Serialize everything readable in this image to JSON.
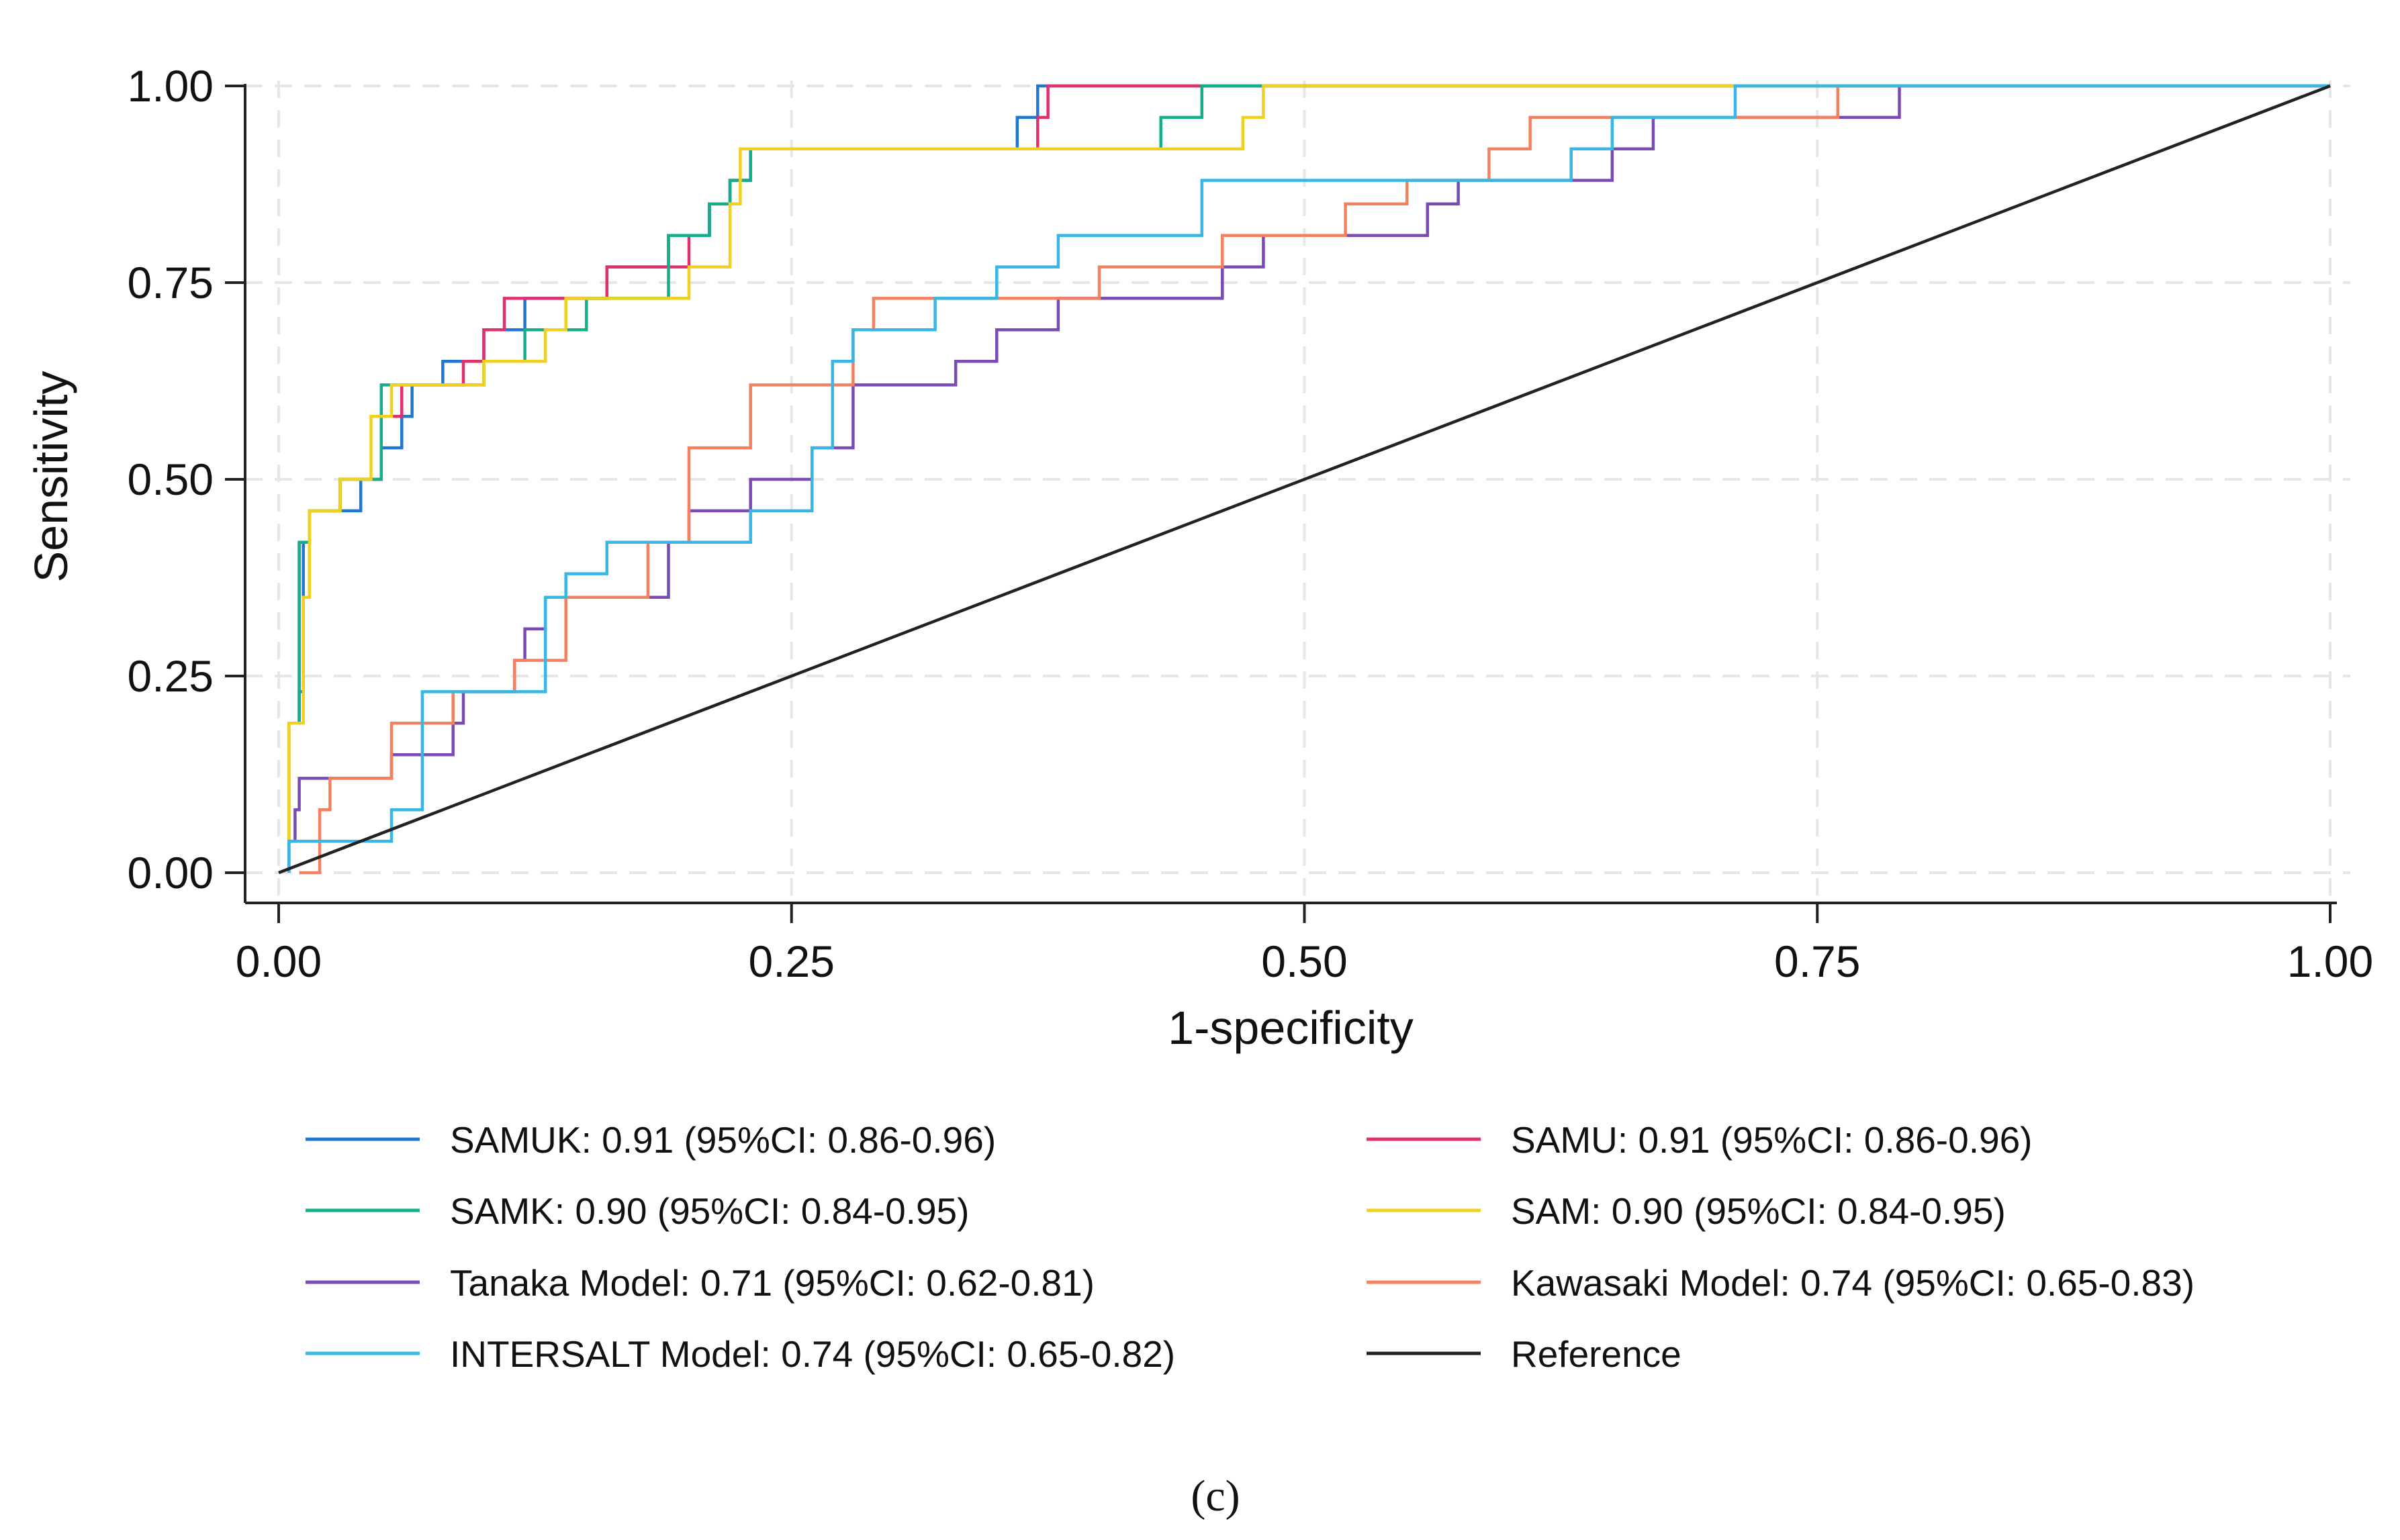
{
  "chart_data": {
    "type": "line",
    "xlabel": "1-specificity",
    "ylabel": "Sensitivity",
    "xlim": [
      0,
      1
    ],
    "ylim": [
      0,
      1
    ],
    "xticks": [
      "0.00",
      "0.25",
      "0.50",
      "0.75",
      "1.00"
    ],
    "yticks": [
      "0.00",
      "0.25",
      "0.50",
      "0.75",
      "1.00"
    ],
    "grid": true,
    "legend_position": "bottom",
    "caption": "(c)",
    "series": [
      {
        "name": "SAMUK: 0.91 (95%CI: 0.86-0.96)",
        "color": "#1f77d4",
        "points": [
          [
            0.005,
            0
          ],
          [
            0.005,
            0.19
          ],
          [
            0.01,
            0.19
          ],
          [
            0.01,
            0.23
          ],
          [
            0.012,
            0.23
          ],
          [
            0.012,
            0.42
          ],
          [
            0.015,
            0.42
          ],
          [
            0.015,
            0.46
          ],
          [
            0.04,
            0.46
          ],
          [
            0.04,
            0.5
          ],
          [
            0.05,
            0.5
          ],
          [
            0.05,
            0.54
          ],
          [
            0.06,
            0.54
          ],
          [
            0.06,
            0.58
          ],
          [
            0.065,
            0.58
          ],
          [
            0.065,
            0.62
          ],
          [
            0.08,
            0.62
          ],
          [
            0.08,
            0.65
          ],
          [
            0.1,
            0.65
          ],
          [
            0.1,
            0.69
          ],
          [
            0.12,
            0.69
          ],
          [
            0.12,
            0.73
          ],
          [
            0.16,
            0.73
          ],
          [
            0.16,
            0.77
          ],
          [
            0.19,
            0.77
          ],
          [
            0.19,
            0.81
          ],
          [
            0.21,
            0.81
          ],
          [
            0.21,
            0.85
          ],
          [
            0.22,
            0.85
          ],
          [
            0.22,
            0.88
          ],
          [
            0.23,
            0.88
          ],
          [
            0.23,
            0.92
          ],
          [
            0.36,
            0.92
          ],
          [
            0.36,
            0.96
          ],
          [
            0.37,
            0.96
          ],
          [
            0.37,
            1.0
          ],
          [
            1.0,
            1.0
          ]
        ]
      },
      {
        "name": "SAMU: 0.91 (95%CI: 0.86-0.96)",
        "color": "#e0306e",
        "points": [
          [
            0.005,
            0
          ],
          [
            0.005,
            0.19
          ],
          [
            0.01,
            0.19
          ],
          [
            0.01,
            0.42
          ],
          [
            0.015,
            0.42
          ],
          [
            0.015,
            0.46
          ],
          [
            0.03,
            0.46
          ],
          [
            0.03,
            0.5
          ],
          [
            0.05,
            0.5
          ],
          [
            0.05,
            0.58
          ],
          [
            0.06,
            0.58
          ],
          [
            0.06,
            0.62
          ],
          [
            0.09,
            0.62
          ],
          [
            0.09,
            0.65
          ],
          [
            0.1,
            0.65
          ],
          [
            0.1,
            0.69
          ],
          [
            0.11,
            0.69
          ],
          [
            0.11,
            0.73
          ],
          [
            0.16,
            0.73
          ],
          [
            0.16,
            0.77
          ],
          [
            0.2,
            0.77
          ],
          [
            0.2,
            0.81
          ],
          [
            0.21,
            0.81
          ],
          [
            0.21,
            0.85
          ],
          [
            0.22,
            0.85
          ],
          [
            0.22,
            0.88
          ],
          [
            0.23,
            0.88
          ],
          [
            0.23,
            0.92
          ],
          [
            0.37,
            0.92
          ],
          [
            0.37,
            0.96
          ],
          [
            0.375,
            0.96
          ],
          [
            0.375,
            1.0
          ],
          [
            1.0,
            1.0
          ]
        ]
      },
      {
        "name": "SAMK: 0.90 (95%CI: 0.84-0.95)",
        "color": "#12b08a",
        "points": [
          [
            0.005,
            0
          ],
          [
            0.005,
            0.19
          ],
          [
            0.01,
            0.19
          ],
          [
            0.01,
            0.42
          ],
          [
            0.015,
            0.42
          ],
          [
            0.015,
            0.46
          ],
          [
            0.03,
            0.46
          ],
          [
            0.03,
            0.5
          ],
          [
            0.05,
            0.5
          ],
          [
            0.05,
            0.62
          ],
          [
            0.06,
            0.62
          ],
          [
            0.06,
            0.62
          ],
          [
            0.1,
            0.62
          ],
          [
            0.1,
            0.65
          ],
          [
            0.12,
            0.65
          ],
          [
            0.12,
            0.69
          ],
          [
            0.15,
            0.69
          ],
          [
            0.15,
            0.73
          ],
          [
            0.19,
            0.73
          ],
          [
            0.19,
            0.81
          ],
          [
            0.21,
            0.81
          ],
          [
            0.21,
            0.85
          ],
          [
            0.22,
            0.85
          ],
          [
            0.22,
            0.88
          ],
          [
            0.23,
            0.88
          ],
          [
            0.23,
            0.92
          ],
          [
            0.43,
            0.92
          ],
          [
            0.43,
            0.96
          ],
          [
            0.45,
            0.96
          ],
          [
            0.45,
            1.0
          ],
          [
            1.0,
            1.0
          ]
        ]
      },
      {
        "name": "SAM: 0.90 (95%CI: 0.84-0.95)",
        "color": "#f0d020",
        "points": [
          [
            0.005,
            0
          ],
          [
            0.005,
            0.19
          ],
          [
            0.012,
            0.19
          ],
          [
            0.012,
            0.35
          ],
          [
            0.015,
            0.35
          ],
          [
            0.015,
            0.46
          ],
          [
            0.03,
            0.46
          ],
          [
            0.03,
            0.5
          ],
          [
            0.045,
            0.5
          ],
          [
            0.045,
            0.58
          ],
          [
            0.055,
            0.58
          ],
          [
            0.055,
            0.62
          ],
          [
            0.1,
            0.62
          ],
          [
            0.1,
            0.65
          ],
          [
            0.13,
            0.65
          ],
          [
            0.13,
            0.69
          ],
          [
            0.14,
            0.69
          ],
          [
            0.14,
            0.73
          ],
          [
            0.2,
            0.73
          ],
          [
            0.2,
            0.77
          ],
          [
            0.22,
            0.77
          ],
          [
            0.22,
            0.85
          ],
          [
            0.225,
            0.85
          ],
          [
            0.225,
            0.92
          ],
          [
            0.47,
            0.92
          ],
          [
            0.47,
            0.96
          ],
          [
            0.48,
            0.96
          ],
          [
            0.48,
            1.0
          ],
          [
            1.0,
            1.0
          ]
        ]
      },
      {
        "name": "Tanaka Model: 0.71 (95%CI: 0.62-0.81)",
        "color": "#7b4bb5",
        "points": [
          [
            0.005,
            0
          ],
          [
            0.005,
            0.04
          ],
          [
            0.008,
            0.04
          ],
          [
            0.008,
            0.08
          ],
          [
            0.01,
            0.08
          ],
          [
            0.01,
            0.12
          ],
          [
            0.055,
            0.12
          ],
          [
            0.055,
            0.15
          ],
          [
            0.085,
            0.15
          ],
          [
            0.085,
            0.19
          ],
          [
            0.09,
            0.19
          ],
          [
            0.09,
            0.23
          ],
          [
            0.115,
            0.23
          ],
          [
            0.115,
            0.27
          ],
          [
            0.12,
            0.27
          ],
          [
            0.12,
            0.31
          ],
          [
            0.13,
            0.31
          ],
          [
            0.13,
            0.35
          ],
          [
            0.19,
            0.35
          ],
          [
            0.19,
            0.42
          ],
          [
            0.2,
            0.42
          ],
          [
            0.2,
            0.46
          ],
          [
            0.23,
            0.46
          ],
          [
            0.23,
            0.5
          ],
          [
            0.26,
            0.5
          ],
          [
            0.26,
            0.54
          ],
          [
            0.28,
            0.54
          ],
          [
            0.28,
            0.62
          ],
          [
            0.33,
            0.62
          ],
          [
            0.33,
            0.65
          ],
          [
            0.35,
            0.65
          ],
          [
            0.35,
            0.69
          ],
          [
            0.38,
            0.69
          ],
          [
            0.38,
            0.73
          ],
          [
            0.46,
            0.73
          ],
          [
            0.46,
            0.77
          ],
          [
            0.48,
            0.77
          ],
          [
            0.48,
            0.81
          ],
          [
            0.56,
            0.81
          ],
          [
            0.56,
            0.85
          ],
          [
            0.575,
            0.85
          ],
          [
            0.575,
            0.88
          ],
          [
            0.65,
            0.88
          ],
          [
            0.65,
            0.92
          ],
          [
            0.67,
            0.92
          ],
          [
            0.67,
            0.96
          ],
          [
            0.79,
            0.96
          ],
          [
            0.79,
            1.0
          ],
          [
            1.0,
            1.0
          ]
        ]
      },
      {
        "name": "Kawasaki Model: 0.74 (95%CI: 0.65-0.83)",
        "color": "#f48060",
        "points": [
          [
            0.01,
            0
          ],
          [
            0.01,
            0.0
          ],
          [
            0.02,
            0.0
          ],
          [
            0.02,
            0.08
          ],
          [
            0.025,
            0.08
          ],
          [
            0.025,
            0.12
          ],
          [
            0.055,
            0.12
          ],
          [
            0.055,
            0.19
          ],
          [
            0.085,
            0.19
          ],
          [
            0.085,
            0.23
          ],
          [
            0.115,
            0.23
          ],
          [
            0.115,
            0.27
          ],
          [
            0.14,
            0.27
          ],
          [
            0.14,
            0.35
          ],
          [
            0.18,
            0.35
          ],
          [
            0.18,
            0.42
          ],
          [
            0.2,
            0.42
          ],
          [
            0.2,
            0.46
          ],
          [
            0.2,
            0.46
          ],
          [
            0.2,
            0.54
          ],
          [
            0.23,
            0.54
          ],
          [
            0.23,
            0.62
          ],
          [
            0.28,
            0.62
          ],
          [
            0.28,
            0.69
          ],
          [
            0.29,
            0.69
          ],
          [
            0.29,
            0.73
          ],
          [
            0.4,
            0.73
          ],
          [
            0.4,
            0.77
          ],
          [
            0.46,
            0.77
          ],
          [
            0.46,
            0.81
          ],
          [
            0.52,
            0.81
          ],
          [
            0.52,
            0.85
          ],
          [
            0.55,
            0.85
          ],
          [
            0.55,
            0.88
          ],
          [
            0.59,
            0.88
          ],
          [
            0.59,
            0.92
          ],
          [
            0.61,
            0.92
          ],
          [
            0.61,
            0.96
          ],
          [
            0.76,
            0.96
          ],
          [
            0.76,
            1.0
          ],
          [
            1.0,
            1.0
          ]
        ]
      },
      {
        "name": "INTERSALT Model: 0.74 (95%CI: 0.65-0.82)",
        "color": "#38b6e6",
        "points": [
          [
            0.005,
            0
          ],
          [
            0.005,
            0.04
          ],
          [
            0.055,
            0.04
          ],
          [
            0.055,
            0.08
          ],
          [
            0.07,
            0.08
          ],
          [
            0.07,
            0.23
          ],
          [
            0.13,
            0.23
          ],
          [
            0.13,
            0.35
          ],
          [
            0.14,
            0.35
          ],
          [
            0.14,
            0.38
          ],
          [
            0.16,
            0.38
          ],
          [
            0.16,
            0.42
          ],
          [
            0.23,
            0.42
          ],
          [
            0.23,
            0.46
          ],
          [
            0.26,
            0.46
          ],
          [
            0.26,
            0.54
          ],
          [
            0.27,
            0.54
          ],
          [
            0.27,
            0.65
          ],
          [
            0.28,
            0.65
          ],
          [
            0.28,
            0.69
          ],
          [
            0.32,
            0.69
          ],
          [
            0.32,
            0.73
          ],
          [
            0.35,
            0.73
          ],
          [
            0.35,
            0.77
          ],
          [
            0.38,
            0.77
          ],
          [
            0.38,
            0.81
          ],
          [
            0.45,
            0.81
          ],
          [
            0.45,
            0.88
          ],
          [
            0.63,
            0.88
          ],
          [
            0.63,
            0.92
          ],
          [
            0.65,
            0.92
          ],
          [
            0.65,
            0.96
          ],
          [
            0.71,
            0.96
          ],
          [
            0.71,
            1.0
          ],
          [
            1.0,
            1.0
          ]
        ]
      },
      {
        "name": "Reference",
        "color": "#222222",
        "points": [
          [
            0,
            0
          ],
          [
            1,
            1
          ]
        ]
      }
    ]
  }
}
